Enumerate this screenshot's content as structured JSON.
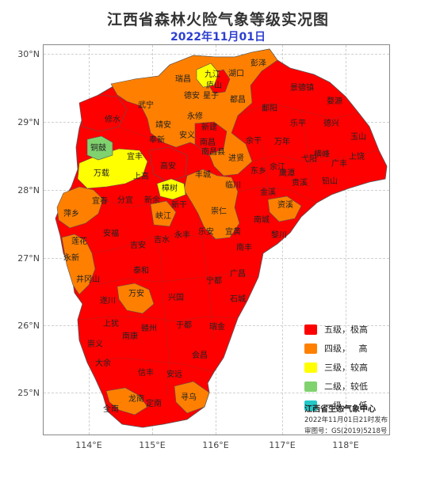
{
  "title": "江西省森林火险气象等级实况图",
  "date": "2022年11月01日",
  "axes": {
    "lat_labels": [
      "30°N",
      "29°N",
      "28°N",
      "27°N",
      "26°N",
      "25°N"
    ],
    "lon_labels": [
      "114°E",
      "115°E",
      "116°E",
      "117°E",
      "118°E"
    ]
  },
  "legend": [
    {
      "label": "五级，极高",
      "color": "#ff0000"
    },
    {
      "label": "四级，   高",
      "color": "#ff8000"
    },
    {
      "label": "三级，较高",
      "color": "#ffff00"
    },
    {
      "label": "二级，较低",
      "color": "#80d26e"
    },
    {
      "label": "一级，   低",
      "color": "#22c8c8"
    }
  ],
  "agency": "江西省生态气象中心",
  "issued": "2022年11月01日21时发布",
  "map_no": "审图号：GS(2019)5218号",
  "counties": [
    {
      "name": "彭泽",
      "level": "四级"
    },
    {
      "name": "九江",
      "level": "三级"
    },
    {
      "name": "湖口",
      "level": "四级"
    },
    {
      "name": "瑞昌",
      "level": "四级"
    },
    {
      "name": "庐山",
      "level": "三级"
    },
    {
      "name": "德安",
      "level": "四级"
    },
    {
      "name": "星子",
      "level": "四级"
    },
    {
      "name": "都昌",
      "level": "四级"
    },
    {
      "name": "景德镇",
      "level": "五级"
    },
    {
      "name": "婺源",
      "level": "五级"
    },
    {
      "name": "武宁",
      "level": "四级"
    },
    {
      "name": "修水",
      "level": "五级"
    },
    {
      "name": "永修",
      "level": "四级"
    },
    {
      "name": "鄱阳",
      "level": "五级"
    },
    {
      "name": "靖安",
      "level": "四级"
    },
    {
      "name": "新建",
      "level": "四级"
    },
    {
      "name": "乐平",
      "level": "五级"
    },
    {
      "name": "德兴",
      "level": "五级"
    },
    {
      "name": "玉山",
      "level": "五级"
    },
    {
      "name": "安义",
      "level": "四级"
    },
    {
      "name": "奉新",
      "level": "四级"
    },
    {
      "name": "南昌",
      "level": "五级"
    },
    {
      "name": "余干",
      "level": "五级"
    },
    {
      "name": "万年",
      "level": "五级"
    },
    {
      "name": "铜鼓",
      "level": "二级"
    },
    {
      "name": "宜丰",
      "level": "三级"
    },
    {
      "name": "南昌县",
      "level": "四级"
    },
    {
      "name": "横峰",
      "level": "五级"
    },
    {
      "name": "上饶",
      "level": "五级"
    },
    {
      "name": "弋阳",
      "level": "五级"
    },
    {
      "name": "进贤",
      "level": "四级"
    },
    {
      "name": "万载",
      "level": "三级"
    },
    {
      "name": "高安",
      "level": "五级"
    },
    {
      "name": "广丰",
      "level": "五级"
    },
    {
      "name": "丰城",
      "level": "五级"
    },
    {
      "name": "余江",
      "level": "五级"
    },
    {
      "name": "鹰潭",
      "level": "五级"
    },
    {
      "name": "东乡",
      "level": "五级"
    },
    {
      "name": "上高",
      "level": "五级"
    },
    {
      "name": "贵溪",
      "level": "五级"
    },
    {
      "name": "铅山",
      "level": "五级"
    },
    {
      "name": "樟树",
      "level": "三级"
    },
    {
      "name": "临川",
      "level": "四级"
    },
    {
      "name": "金溪",
      "level": "五级"
    },
    {
      "name": "宜春",
      "level": "四级"
    },
    {
      "name": "分宜",
      "level": "五级"
    },
    {
      "name": "新余",
      "level": "五级"
    },
    {
      "name": "新干",
      "level": "五级"
    },
    {
      "name": "资溪",
      "level": "四级"
    },
    {
      "name": "萍乡",
      "level": "四级"
    },
    {
      "name": "峡江",
      "level": "四级"
    },
    {
      "name": "崇仁",
      "level": "四级"
    },
    {
      "name": "南城",
      "level": "五级"
    },
    {
      "name": "安福",
      "level": "五级"
    },
    {
      "name": "宜黄",
      "level": "四级"
    },
    {
      "name": "黎川",
      "level": "五级"
    },
    {
      "name": "莲花",
      "level": "四级"
    },
    {
      "name": "吉水",
      "level": "五级"
    },
    {
      "name": "永丰",
      "level": "五级"
    },
    {
      "name": "乐安",
      "level": "五级"
    },
    {
      "name": "吉安",
      "level": "五级"
    },
    {
      "name": "南丰",
      "level": "五级"
    },
    {
      "name": "永新",
      "level": "四级"
    },
    {
      "name": "泰和",
      "level": "五级"
    },
    {
      "name": "广昌",
      "level": "五级"
    },
    {
      "name": "井冈山",
      "level": "四级"
    },
    {
      "name": "宁都",
      "level": "五级"
    },
    {
      "name": "万安",
      "level": "四级"
    },
    {
      "name": "兴国",
      "level": "五级"
    },
    {
      "name": "石城",
      "level": "五级"
    },
    {
      "name": "遂川",
      "level": "五级"
    },
    {
      "name": "上犹",
      "level": "五级"
    },
    {
      "name": "赣州",
      "level": "五级"
    },
    {
      "name": "于都",
      "level": "五级"
    },
    {
      "name": "瑞金",
      "level": "五级"
    },
    {
      "name": "南康",
      "level": "五级"
    },
    {
      "name": "崇义",
      "level": "五级"
    },
    {
      "name": "会昌",
      "level": "五级"
    },
    {
      "name": "大余",
      "level": "五级"
    },
    {
      "name": "信丰",
      "level": "五级"
    },
    {
      "name": "安远",
      "level": "五级"
    },
    {
      "name": "龙南",
      "level": "四级"
    },
    {
      "name": "定南",
      "level": "五级"
    },
    {
      "name": "寻乌",
      "level": "四级"
    },
    {
      "name": "全南",
      "level": "五级"
    }
  ]
}
